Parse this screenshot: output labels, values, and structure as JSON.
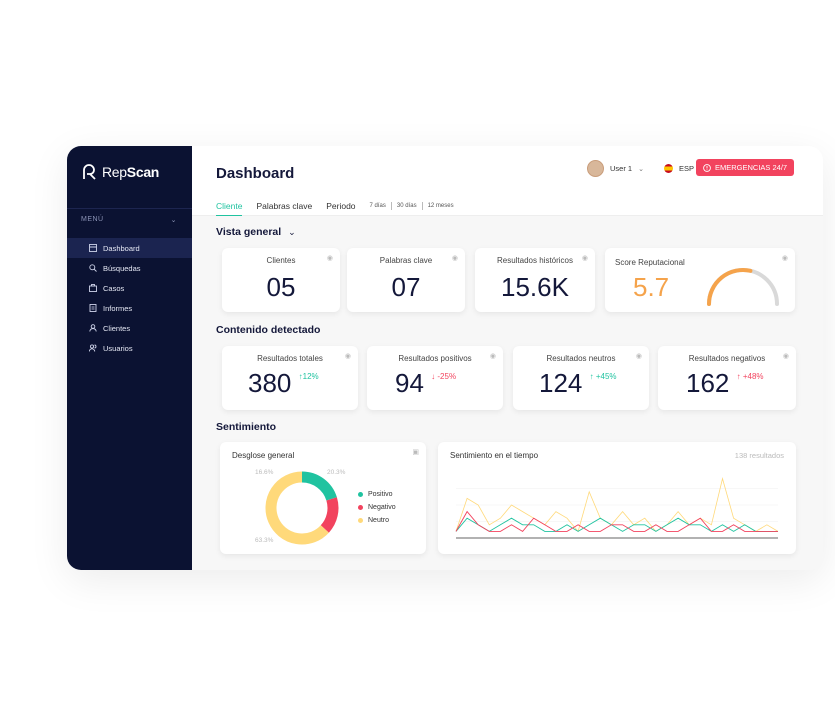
{
  "brand": {
    "name_light": "Rep",
    "name_bold": "Scan"
  },
  "sidebar": {
    "menu_label": "MENÚ",
    "items": [
      {
        "label": "Dashboard",
        "icon": "dashboard-icon",
        "active": true
      },
      {
        "label": "Búsquedas",
        "icon": "search-icon"
      },
      {
        "label": "Casos",
        "icon": "case-icon"
      },
      {
        "label": "Informes",
        "icon": "report-icon"
      },
      {
        "label": "Clientes",
        "icon": "user-icon"
      },
      {
        "label": "Usuarios",
        "icon": "users-icon"
      }
    ]
  },
  "header": {
    "title": "Dashboard",
    "user_name": "User 1",
    "language": "ESP",
    "emergency_label": "EMERGENCIAS 24/7"
  },
  "tabs": {
    "cliente": "Cliente",
    "palabras": "Palabras clave",
    "periodo": "Periodo"
  },
  "periods": [
    "7 días",
    "30 días",
    "12 meses"
  ],
  "overview": {
    "title": "Vista general",
    "cards": [
      {
        "label": "Clientes",
        "value": "05"
      },
      {
        "label": "Palabras clave",
        "value": "07"
      },
      {
        "label": "Resultados históricos",
        "value": "15.6K"
      }
    ],
    "score": {
      "label": "Score Reputacional",
      "value": "5.7",
      "gauge_fraction": 0.57,
      "color": "#f5a34b"
    }
  },
  "content": {
    "title": "Contenido detectado",
    "cards": [
      {
        "label": "Resultados totales",
        "value": "380",
        "delta": "12%",
        "dir": "up"
      },
      {
        "label": "Resultados positivos",
        "value": "94",
        "delta": "-25%",
        "dir": "down"
      },
      {
        "label": "Resultados neutros",
        "value": "124",
        "delta": "+45%",
        "dir": "up"
      },
      {
        "label": "Resultados negativos",
        "value": "162",
        "delta": "+48%",
        "dir": "down"
      }
    ]
  },
  "sentiment": {
    "title": "Sentimiento",
    "breakdown": {
      "title": "Desglose general",
      "legend": [
        "Positivo",
        "Negativo",
        "Neutro"
      ],
      "labels": {
        "negativo": "16.6%",
        "positivo": "20.3%",
        "neutro": "63.3%"
      }
    },
    "timeline": {
      "title": "Sentimiento en el tiempo",
      "count": "138 resultados"
    }
  },
  "colors": {
    "positivo": "#20c3a0",
    "negativo": "#f2435e",
    "neutro": "#ffd97a",
    "navy": "#0b1232"
  },
  "chart_data": [
    {
      "type": "pie",
      "title": "Desglose general",
      "categories": [
        "Positivo",
        "Negativo",
        "Neutro"
      ],
      "values": [
        20.3,
        16.6,
        63.3
      ]
    },
    {
      "type": "line",
      "title": "Sentimiento en el tiempo",
      "x": [
        1,
        2,
        3,
        4,
        5,
        6,
        7,
        8,
        9,
        10,
        11,
        12,
        13,
        14,
        15,
        16,
        17,
        18,
        19,
        20,
        21,
        22,
        23,
        24,
        25,
        26,
        27,
        28,
        29,
        30
      ],
      "series": [
        {
          "name": "Positivo",
          "values": [
            1,
            3,
            2,
            1,
            2,
            3,
            2,
            2,
            1,
            1,
            2,
            1,
            2,
            3,
            2,
            1,
            2,
            2,
            1,
            2,
            3,
            2,
            2,
            1,
            2,
            1,
            2,
            1,
            1,
            1
          ]
        },
        {
          "name": "Negativo",
          "values": [
            1,
            4,
            2,
            1,
            1,
            2,
            1,
            3,
            2,
            1,
            1,
            2,
            1,
            1,
            2,
            2,
            1,
            1,
            2,
            1,
            1,
            2,
            3,
            1,
            1,
            2,
            1,
            1,
            1,
            1
          ]
        },
        {
          "name": "Neutro",
          "values": [
            1,
            6,
            5,
            2,
            3,
            5,
            4,
            3,
            2,
            4,
            3,
            1,
            7,
            3,
            2,
            4,
            2,
            3,
            1,
            2,
            4,
            2,
            3,
            2,
            9,
            3,
            2,
            1,
            2,
            1
          ]
        }
      ]
    }
  ]
}
